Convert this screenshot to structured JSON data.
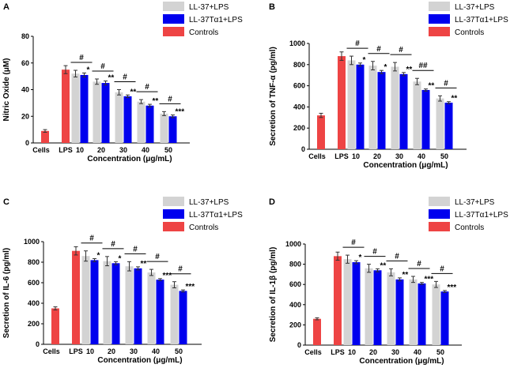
{
  "figure": {
    "colors": {
      "series1": "#d3d3d3",
      "series2": "#0000ee",
      "series3": "#ee4444"
    },
    "cells_label": "Cells",
    "lps_label": "LPS"
  },
  "chart_data": [
    {
      "type": "bar",
      "panel_label": "A",
      "ylabel": "Nitric Oxide (μM)",
      "xlabel": "Concentration (μg/mL)",
      "categories": [
        "10",
        "20",
        "30",
        "40",
        "50"
      ],
      "ylim": [
        0,
        80
      ],
      "yticks": [
        0,
        20,
        40,
        60,
        80
      ],
      "grid": false,
      "legend": [
        "LL-37+LPS",
        "LL-37Tα1+LPS",
        "Controls"
      ],
      "legend_position": "top-right",
      "controls": [
        {
          "name": "Cells",
          "value": 9,
          "error": 1
        },
        {
          "name": "LPS",
          "value": 55,
          "error": 3
        }
      ],
      "series": [
        {
          "name": "LL-37+LPS",
          "values": [
            52,
            46,
            38,
            31,
            22
          ],
          "errors": [
            2.5,
            2,
            2,
            1.5,
            1.5
          ]
        },
        {
          "name": "LL-37Tα1+LPS",
          "values": [
            51,
            45,
            35,
            28,
            20
          ],
          "errors": [
            1.5,
            1.5,
            1,
            1,
            1
          ],
          "significance": [
            "*",
            "**",
            "**",
            "**",
            "***"
          ]
        }
      ],
      "pair_significance": [
        "#",
        "#",
        "#",
        "#",
        "#"
      ]
    },
    {
      "type": "bar",
      "panel_label": "B",
      "ylabel": "Secretion of TNF-α (pg/ml)",
      "xlabel": "Concentration (μg/mL)",
      "categories": [
        "10",
        "20",
        "30",
        "40",
        "50"
      ],
      "ylim": [
        0,
        1000
      ],
      "yticks": [
        0,
        200,
        400,
        600,
        800,
        1000
      ],
      "grid": false,
      "legend": [
        "LL-37+LPS",
        "LL-37Tα1+LPS",
        "Controls"
      ],
      "legend_position": "top-right",
      "controls": [
        {
          "name": "Cells",
          "value": 320,
          "error": 20
        },
        {
          "name": "LPS",
          "value": 880,
          "error": 40
        }
      ],
      "series": [
        {
          "name": "LL-37+LPS",
          "values": [
            840,
            790,
            780,
            640,
            480
          ],
          "errors": [
            40,
            40,
            40,
            30,
            25
          ]
        },
        {
          "name": "LL-37Tα1+LPS",
          "values": [
            800,
            730,
            710,
            560,
            440
          ],
          "errors": [
            15,
            15,
            15,
            10,
            10
          ],
          "significance": [
            "*",
            "*",
            "**",
            "**",
            "**"
          ]
        }
      ],
      "pair_significance": [
        "#",
        "#",
        "#",
        "##",
        "#"
      ]
    },
    {
      "type": "bar",
      "panel_label": "C",
      "ylabel": "Secretion of IL-6 (pg/ml)",
      "xlabel": "Concentration (μg/mL)",
      "categories": [
        "10",
        "20",
        "30",
        "40",
        "50"
      ],
      "ylim": [
        0,
        1000
      ],
      "yticks": [
        0,
        200,
        400,
        600,
        800,
        1000
      ],
      "grid": false,
      "legend": [
        "LL-37+LPS",
        "LL-37Tα1+LPS",
        "Controls"
      ],
      "legend_position": "top-right",
      "controls": [
        {
          "name": "Cells",
          "value": 350,
          "error": 15
        },
        {
          "name": "LPS",
          "value": 910,
          "error": 40
        }
      ],
      "series": [
        {
          "name": "LL-37+LPS",
          "values": [
            860,
            810,
            760,
            700,
            580
          ],
          "errors": [
            50,
            45,
            45,
            30,
            30
          ]
        },
        {
          "name": "LL-37Tα1+LPS",
          "values": [
            820,
            790,
            740,
            630,
            520
          ],
          "errors": [
            15,
            15,
            15,
            10,
            10
          ],
          "significance": [
            "*",
            "*",
            "**",
            "***",
            "***"
          ]
        }
      ],
      "pair_significance": [
        "#",
        "#",
        "#",
        "#",
        "#"
      ]
    },
    {
      "type": "bar",
      "panel_label": "D",
      "ylabel": "Secretion of IL-1β (pg/ml)",
      "xlabel": "Concentration (μg/mL)",
      "categories": [
        "10",
        "20",
        "30",
        "40",
        "50"
      ],
      "ylim": [
        0,
        1000
      ],
      "yticks": [
        0,
        200,
        400,
        600,
        800,
        1000
      ],
      "grid": false,
      "legend": [
        "LL-37+LPS",
        "LL-37Tα1+LPS",
        "Controls"
      ],
      "legend_position": "top-right",
      "controls": [
        {
          "name": "Cells",
          "value": 260,
          "error": 10
        },
        {
          "name": "LPS",
          "value": 880,
          "error": 40
        }
      ],
      "series": [
        {
          "name": "LL-37+LPS",
          "values": [
            850,
            760,
            720,
            650,
            600
          ],
          "errors": [
            40,
            40,
            35,
            30,
            30
          ]
        },
        {
          "name": "LL-37Tα1+LPS",
          "values": [
            820,
            740,
            650,
            610,
            530
          ],
          "errors": [
            15,
            15,
            15,
            10,
            10
          ],
          "significance": [
            "*",
            "**",
            "**",
            "***",
            "***"
          ]
        }
      ],
      "pair_significance": [
        "#",
        "#",
        "#",
        "#",
        "#"
      ]
    }
  ]
}
